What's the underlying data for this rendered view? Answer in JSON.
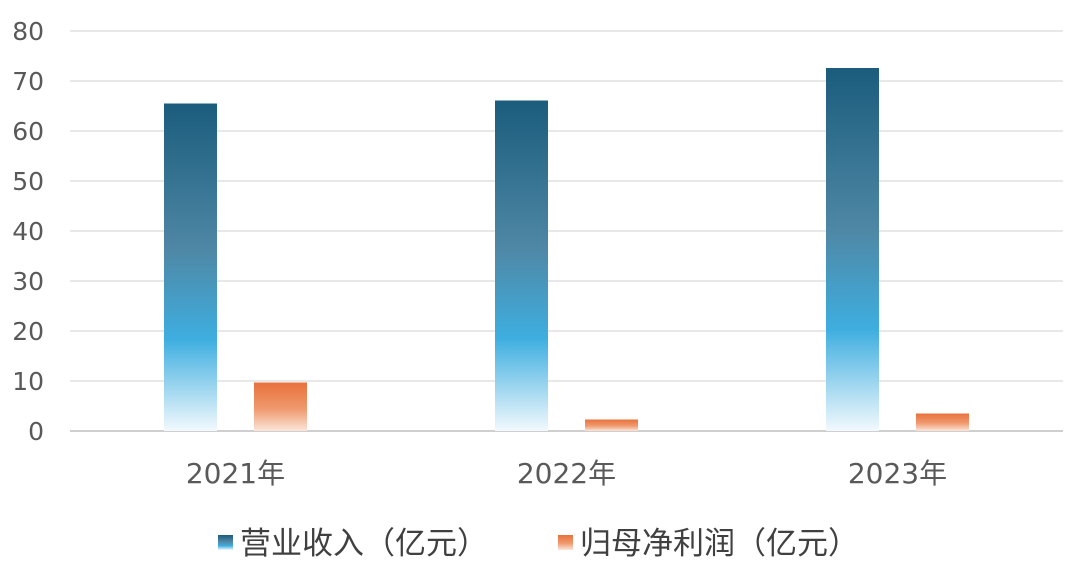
{
  "chart_data": {
    "type": "bar",
    "title": "",
    "xlabel": "",
    "ylabel": "",
    "categories": [
      "2021年",
      "2022年",
      "2023年"
    ],
    "ylim": [
      0,
      80
    ],
    "yticks": [
      0,
      10,
      20,
      30,
      40,
      50,
      60,
      70,
      80
    ],
    "yticks_labels": [
      "0",
      "10",
      "20",
      "30",
      "40",
      "50",
      "60",
      "70",
      "80"
    ],
    "grid": true,
    "legend_position": "bottom",
    "series": [
      {
        "name": "营业收入（亿元）",
        "values": [
          65.5,
          66.1,
          72.6
        ],
        "color": "#1b5c7c"
      },
      {
        "name": "归母净利润（亿元）",
        "values": [
          9.7,
          2.3,
          3.5
        ],
        "color": "#e8713c"
      }
    ]
  }
}
